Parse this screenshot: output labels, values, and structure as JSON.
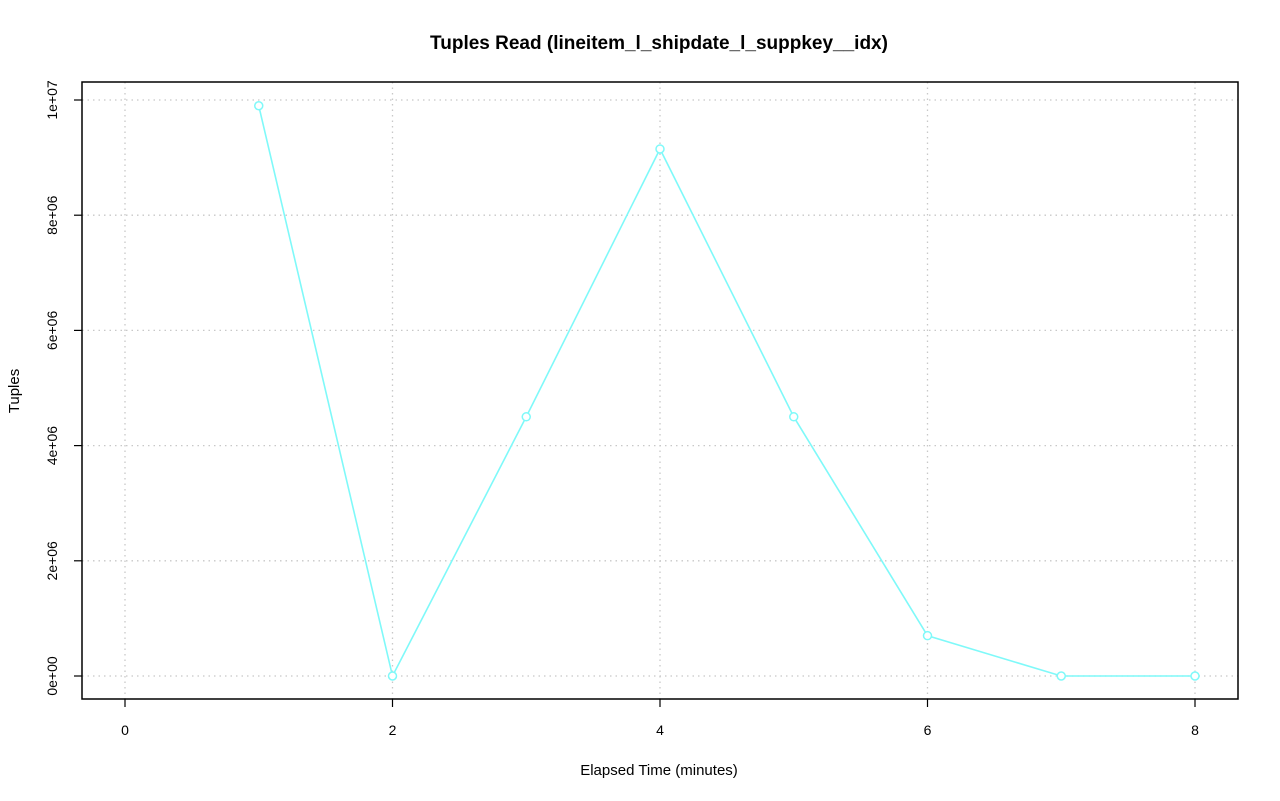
{
  "chart_data": {
    "type": "line",
    "title": "Tuples Read (lineitem_l_shipdate_l_suppkey__idx)",
    "xlabel": "Elapsed Time (minutes)",
    "ylabel": "Tuples",
    "xlim": [
      0,
      8
    ],
    "ylim": [
      0,
      10000000
    ],
    "x_ticks": [
      0,
      2,
      4,
      6,
      8
    ],
    "x_tick_labels": [
      "0",
      "2",
      "4",
      "6",
      "8"
    ],
    "y_ticks": [
      0,
      2000000,
      4000000,
      6000000,
      8000000,
      10000000
    ],
    "y_tick_labels": [
      "0e+00",
      "2e+06",
      "4e+06",
      "6e+06",
      "8e+06",
      "1e+07"
    ],
    "grid": true,
    "legend": "none",
    "series": [
      {
        "color": "#7ff9f9",
        "x": [
          1,
          2,
          3,
          4,
          5,
          6,
          7,
          8
        ],
        "values": [
          9900000,
          0,
          4500000,
          9150000,
          4500000,
          700000,
          0,
          0
        ]
      }
    ]
  }
}
